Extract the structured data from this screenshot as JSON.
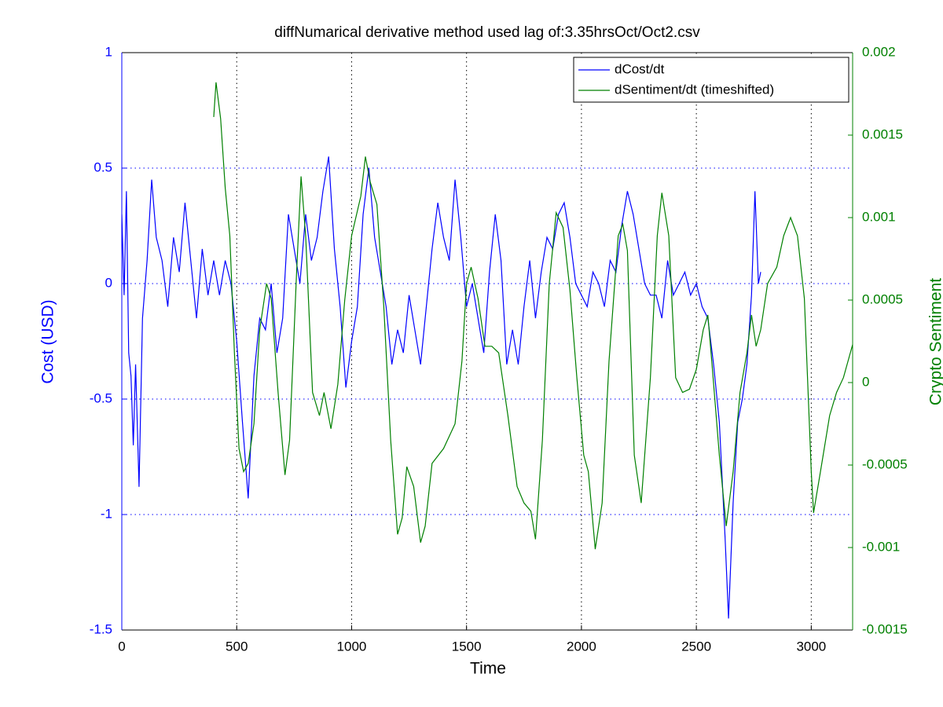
{
  "chart_data": {
    "type": "line",
    "title": "diffNumarical derivative method used lag of:3.35hrsOct/Oct2.csv",
    "x_label": "Time",
    "y_label": "Cost (USD)",
    "y2_label": "Crypto Sentiment",
    "xlim": [
      0,
      3180
    ],
    "xticks": [
      0,
      500,
      1000,
      1500,
      2000,
      2500,
      3000
    ],
    "ylim": [
      -1.5,
      1
    ],
    "yticks": [
      -1.5,
      -1,
      -0.5,
      0,
      0.5,
      1
    ],
    "y2lim": [
      -0.0015,
      0.002
    ],
    "y2ticks": [
      -0.0015,
      -0.001,
      -0.0005,
      0,
      0.0005,
      0.001,
      0.0015,
      0.002
    ],
    "grid": true,
    "legend": "upper-right",
    "series": [
      {
        "name": "dCost/dt",
        "color": "#0000ff",
        "x": [
          0,
          10,
          20,
          30,
          40,
          50,
          60,
          75,
          90,
          110,
          130,
          150,
          175,
          200,
          225,
          250,
          275,
          300,
          325,
          350,
          375,
          400,
          425,
          450,
          475,
          500,
          525,
          550,
          575,
          600,
          625,
          650,
          675,
          700,
          725,
          750,
          775,
          800,
          825,
          850,
          875,
          900,
          925,
          950,
          975,
          1000,
          1025,
          1050,
          1075,
          1100,
          1125,
          1150,
          1175,
          1200,
          1225,
          1250,
          1275,
          1300,
          1325,
          1350,
          1375,
          1400,
          1425,
          1450,
          1475,
          1500,
          1525,
          1550,
          1575,
          1600,
          1625,
          1650,
          1675,
          1700,
          1725,
          1750,
          1775,
          1800,
          1825,
          1850,
          1875,
          1900,
          1925,
          1950,
          1975,
          2000,
          2025,
          2050,
          2075,
          2100,
          2125,
          2150,
          2175,
          2200,
          2225,
          2250,
          2275,
          2300,
          2325,
          2350,
          2375,
          2400,
          2425,
          2450,
          2475,
          2500,
          2525,
          2550,
          2575,
          2600,
          2625,
          2640,
          2660,
          2680,
          2700,
          2720,
          2740,
          2755,
          2770,
          2780
        ],
        "values": [
          0.3,
          -0.05,
          0.4,
          -0.3,
          -0.4,
          -0.7,
          -0.35,
          -0.88,
          -0.15,
          0.1,
          0.45,
          0.2,
          0.1,
          -0.1,
          0.2,
          0.05,
          0.35,
          0.1,
          -0.15,
          0.15,
          -0.05,
          0.1,
          -0.05,
          0.1,
          0.0,
          -0.25,
          -0.6,
          -0.93,
          -0.4,
          -0.15,
          -0.2,
          0.0,
          -0.3,
          -0.15,
          0.3,
          0.15,
          0.0,
          0.3,
          0.1,
          0.2,
          0.4,
          0.55,
          0.15,
          -0.1,
          -0.45,
          -0.25,
          -0.1,
          0.3,
          0.5,
          0.2,
          0.05,
          -0.1,
          -0.35,
          -0.2,
          -0.3,
          -0.05,
          -0.2,
          -0.35,
          -0.1,
          0.15,
          0.35,
          0.2,
          0.1,
          0.45,
          0.2,
          -0.1,
          0.0,
          -0.15,
          -0.3,
          0.05,
          0.3,
          0.1,
          -0.35,
          -0.2,
          -0.35,
          -0.1,
          0.1,
          -0.15,
          0.05,
          0.2,
          0.15,
          0.3,
          0.35,
          0.2,
          0.0,
          -0.05,
          -0.1,
          0.05,
          0.0,
          -0.1,
          0.1,
          0.05,
          0.25,
          0.4,
          0.3,
          0.15,
          0.0,
          -0.05,
          -0.05,
          -0.15,
          0.1,
          -0.05,
          0.0,
          0.05,
          -0.05,
          0.0,
          -0.1,
          -0.15,
          -0.35,
          -0.6,
          -1.1,
          -1.45,
          -0.95,
          -0.6,
          -0.5,
          -0.35,
          -0.05,
          0.4,
          0.0,
          0.05
        ]
      },
      {
        "name": "dSentiment/dt (timeshifted)",
        "color": "#008000",
        "axis": "y2",
        "x": [
          400,
          410,
          430,
          450,
          470,
          490,
          510,
          530,
          550,
          575,
          600,
          630,
          650,
          680,
          710,
          730,
          760,
          780,
          800,
          830,
          860,
          880,
          910,
          940,
          970,
          1000,
          1040,
          1060,
          1080,
          1110,
          1140,
          1170,
          1200,
          1220,
          1240,
          1270,
          1300,
          1320,
          1350,
          1400,
          1450,
          1480,
          1500,
          1520,
          1550,
          1580,
          1610,
          1640,
          1680,
          1720,
          1750,
          1780,
          1800,
          1830,
          1860,
          1890,
          1920,
          1950,
          1980,
          2010,
          2030,
          2060,
          2090,
          2120,
          2160,
          2180,
          2200,
          2230,
          2260,
          2300,
          2330,
          2350,
          2380,
          2410,
          2440,
          2470,
          2500,
          2530,
          2550,
          2570,
          2600,
          2630,
          2660,
          2690,
          2720,
          2740,
          2760,
          2780,
          2810,
          2850,
          2880,
          2910,
          2940,
          2970,
          3000,
          3010,
          3040,
          3080,
          3110,
          3140,
          3180
        ],
        "values": [
          0.00161,
          0.00182,
          0.0016,
          0.00118,
          0.00089,
          0.00018,
          -0.0004,
          -0.00054,
          -0.00049,
          -0.00025,
          0.00032,
          0.0006,
          0.00051,
          -6e-05,
          -0.00056,
          -0.00035,
          0.00065,
          0.00125,
          0.00089,
          -6e-05,
          -0.0002,
          -6e-05,
          -0.00028,
          -1e-05,
          0.0005,
          0.00089,
          0.00113,
          0.00137,
          0.00122,
          0.00108,
          0.00046,
          -0.00035,
          -0.00092,
          -0.00082,
          -0.00051,
          -0.00063,
          -0.00097,
          -0.00087,
          -0.00049,
          -0.0004,
          -0.00025,
          0.00013,
          0.0006,
          0.0007,
          0.00051,
          0.00022,
          0.00022,
          0.00018,
          -0.0002,
          -0.00063,
          -0.00073,
          -0.00078,
          -0.00095,
          -0.00035,
          0.0006,
          0.00103,
          0.00094,
          0.00056,
          3e-05,
          -0.00044,
          -0.00054,
          -0.00101,
          -0.00073,
          0.00013,
          0.00089,
          0.00096,
          0.0008,
          -0.00044,
          -0.00073,
          3e-05,
          0.00089,
          0.00115,
          0.00089,
          3e-05,
          -6e-05,
          -4e-05,
          8e-05,
          0.00032,
          0.00041,
          8e-05,
          -0.00044,
          -0.00087,
          -0.00054,
          -6e-05,
          0.00018,
          0.00041,
          0.00022,
          0.00032,
          0.0006,
          0.0007,
          0.00089,
          0.001,
          0.00089,
          0.00051,
          -0.00054,
          -0.00079,
          -0.00054,
          -0.0002,
          -6e-05,
          3e-05,
          0.00023
        ]
      }
    ]
  }
}
